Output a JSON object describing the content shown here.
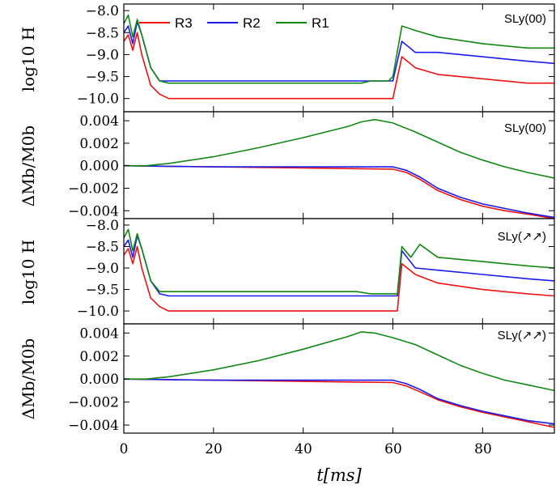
{
  "colors": {
    "R3": "#ee1111",
    "R2": "#1a1aee",
    "R1": "#118811"
  },
  "legend": [
    "R3",
    "R2",
    "R1"
  ],
  "xlabel": "t[ms]",
  "xticks": [
    "0",
    "20",
    "40",
    "60",
    "80"
  ],
  "chart_data": [
    {
      "type": "line",
      "panel": "top",
      "ylabel": "log10 H",
      "tag": "SLy(00)",
      "xlim": [
        0,
        96
      ],
      "ylim": [
        -10.3,
        -7.85
      ],
      "ytick_values": [
        -8.0,
        -8.5,
        -9.0,
        -9.5,
        -10.0
      ],
      "yticks": [
        "−8.0",
        "−8.5",
        "−9.0",
        "−9.5",
        "−10.0"
      ],
      "series": [
        {
          "name": "R3",
          "x": [
            0,
            1,
            2,
            3,
            4,
            6,
            8,
            10,
            15,
            20,
            30,
            40,
            50,
            55,
            58,
            59,
            60,
            62,
            65,
            70,
            80,
            90,
            96
          ],
          "y": [
            -8.7,
            -8.55,
            -8.9,
            -8.5,
            -9.0,
            -9.7,
            -9.9,
            -10.0,
            -10.0,
            -10.0,
            -10.0,
            -10.0,
            -10.0,
            -10.0,
            -10.0,
            -10.0,
            -10.0,
            -9.05,
            -9.3,
            -9.45,
            -9.55,
            -9.65,
            -9.65
          ]
        },
        {
          "name": "R2",
          "x": [
            0,
            1,
            2,
            3,
            4,
            6,
            8,
            10,
            15,
            20,
            30,
            40,
            50,
            55,
            58,
            59,
            60,
            62,
            65,
            70,
            80,
            90,
            96
          ],
          "y": [
            -8.5,
            -8.35,
            -8.75,
            -8.25,
            -8.55,
            -9.3,
            -9.6,
            -9.6,
            -9.6,
            -9.6,
            -9.6,
            -9.6,
            -9.6,
            -9.6,
            -9.6,
            -9.6,
            -9.6,
            -8.7,
            -8.95,
            -8.95,
            -9.05,
            -9.15,
            -9.2
          ]
        },
        {
          "name": "R1",
          "x": [
            0,
            1,
            2,
            3,
            4,
            6,
            8,
            10,
            15,
            20,
            30,
            40,
            48,
            50,
            53,
            55,
            58,
            59,
            60,
            62,
            65,
            70,
            80,
            90,
            96
          ],
          "y": [
            -8.3,
            -8.1,
            -8.6,
            -8.2,
            -8.55,
            -9.3,
            -9.6,
            -9.65,
            -9.65,
            -9.65,
            -9.65,
            -9.65,
            -9.65,
            -9.65,
            -9.65,
            -9.6,
            -9.6,
            -9.6,
            -9.5,
            -8.35,
            -8.45,
            -8.6,
            -8.75,
            -8.85,
            -8.85
          ]
        }
      ]
    },
    {
      "type": "line",
      "panel": "second",
      "ylabel": "ΔMb/M0b",
      "tag": "SLy(00)",
      "xlim": [
        0,
        96
      ],
      "ylim": [
        -0.0047,
        0.0048
      ],
      "ytick_values": [
        0.004,
        0.002,
        0.0,
        -0.002,
        -0.004
      ],
      "yticks": [
        "0.004",
        "0.002",
        "0.000",
        "−0.002",
        "−0.004"
      ],
      "series": [
        {
          "name": "R3",
          "x": [
            0,
            10,
            20,
            30,
            40,
            50,
            60,
            63,
            66,
            70,
            75,
            80,
            85,
            90,
            96
          ],
          "y": [
            0.0,
            -5e-05,
            -0.0001,
            -0.00015,
            -0.0002,
            -0.00025,
            -0.0003,
            -0.0006,
            -0.0012,
            -0.0022,
            -0.003,
            -0.0036,
            -0.004,
            -0.0043,
            -0.0047
          ]
        },
        {
          "name": "R2",
          "x": [
            0,
            10,
            20,
            30,
            40,
            50,
            60,
            63,
            66,
            70,
            75,
            80,
            85,
            90,
            96
          ],
          "y": [
            0.0,
            -5e-05,
            -0.0001,
            -0.0001,
            -0.0001,
            -0.0001,
            -0.0001,
            -0.0004,
            -0.001,
            -0.002,
            -0.0028,
            -0.0034,
            -0.0038,
            -0.0042,
            -0.0046
          ]
        },
        {
          "name": "R1",
          "x": [
            0,
            5,
            10,
            20,
            30,
            40,
            50,
            53,
            56,
            60,
            65,
            70,
            75,
            80,
            85,
            90,
            96
          ],
          "y": [
            0.0,
            0.0,
            0.0002,
            0.0008,
            0.0016,
            0.0025,
            0.0035,
            0.0039,
            0.0041,
            0.0038,
            0.003,
            0.0021,
            0.0012,
            0.0005,
            -0.0001,
            -0.0006,
            -0.0011
          ]
        }
      ]
    },
    {
      "type": "line",
      "panel": "third",
      "ylabel": "log10 H",
      "tag": "SLy(↗↗)",
      "xlim": [
        0,
        96
      ],
      "ylim": [
        -10.3,
        -7.85
      ],
      "ytick_values": [
        -8.0,
        -8.5,
        -9.0,
        -9.5,
        -10.0
      ],
      "yticks": [
        "−8.0",
        "−8.5",
        "−9.0",
        "−9.5",
        "−10.0"
      ],
      "series": [
        {
          "name": "R3",
          "x": [
            0,
            1,
            2,
            3,
            4,
            6,
            8,
            10,
            15,
            20,
            30,
            40,
            50,
            55,
            58,
            60,
            61,
            62,
            65,
            70,
            80,
            90,
            96
          ],
          "y": [
            -8.7,
            -8.55,
            -8.9,
            -8.5,
            -9.0,
            -9.7,
            -9.9,
            -10.0,
            -10.0,
            -10.0,
            -10.0,
            -10.0,
            -10.0,
            -10.0,
            -10.0,
            -10.0,
            -10.0,
            -8.9,
            -9.15,
            -9.35,
            -9.5,
            -9.6,
            -9.65
          ]
        },
        {
          "name": "R2",
          "x": [
            0,
            1,
            2,
            3,
            4,
            6,
            8,
            10,
            15,
            20,
            30,
            40,
            50,
            55,
            58,
            60,
            61,
            62,
            65,
            70,
            80,
            90,
            96
          ],
          "y": [
            -8.5,
            -8.35,
            -8.75,
            -8.25,
            -8.55,
            -9.3,
            -9.6,
            -9.65,
            -9.65,
            -9.65,
            -9.65,
            -9.65,
            -9.65,
            -9.65,
            -9.65,
            -9.65,
            -9.65,
            -8.6,
            -9.0,
            -9.05,
            -9.15,
            -9.25,
            -9.3
          ]
        },
        {
          "name": "R1",
          "x": [
            0,
            1,
            2,
            3,
            4,
            6,
            8,
            10,
            15,
            20,
            30,
            40,
            50,
            52,
            55,
            58,
            60,
            61,
            62,
            64,
            66,
            70,
            80,
            90,
            96
          ],
          "y": [
            -8.3,
            -8.1,
            -8.6,
            -8.2,
            -8.55,
            -9.3,
            -9.55,
            -9.55,
            -9.55,
            -9.55,
            -9.55,
            -9.55,
            -9.55,
            -9.55,
            -9.6,
            -9.6,
            -9.6,
            -9.6,
            -8.5,
            -8.75,
            -8.45,
            -8.75,
            -8.85,
            -8.95,
            -9.0
          ]
        }
      ]
    },
    {
      "type": "line",
      "panel": "bottom",
      "ylabel": "ΔMb/M0b",
      "tag": "SLy(↗↗)",
      "xlim": [
        0,
        96
      ],
      "ylim": [
        -0.0047,
        0.0048
      ],
      "ytick_values": [
        0.004,
        0.002,
        0.0,
        -0.002,
        -0.004
      ],
      "yticks": [
        "0.004",
        "0.002",
        "0.000",
        "−0.002",
        "−0.004"
      ],
      "series": [
        {
          "name": "R3",
          "x": [
            0,
            10,
            20,
            30,
            40,
            50,
            60,
            63,
            66,
            70,
            75,
            80,
            85,
            90,
            96
          ],
          "y": [
            0.0,
            -5e-05,
            -0.0001,
            -0.00015,
            -0.0002,
            -0.00025,
            -0.0003,
            -0.0006,
            -0.0011,
            -0.0018,
            -0.0024,
            -0.0029,
            -0.0033,
            -0.0037,
            -0.0042
          ]
        },
        {
          "name": "R2",
          "x": [
            0,
            10,
            20,
            30,
            40,
            50,
            60,
            63,
            66,
            70,
            75,
            80,
            85,
            90,
            96
          ],
          "y": [
            0.0,
            -5e-05,
            -0.0001,
            -0.0001,
            -0.0001,
            -0.0001,
            -0.0001,
            -0.0004,
            -0.0009,
            -0.0017,
            -0.0023,
            -0.0028,
            -0.0032,
            -0.0036,
            -0.0039
          ]
        },
        {
          "name": "R1",
          "x": [
            0,
            5,
            10,
            20,
            30,
            40,
            50,
            53,
            56,
            60,
            65,
            70,
            75,
            80,
            85,
            90,
            96
          ],
          "y": [
            0.0,
            0.0,
            0.0002,
            0.0008,
            0.0016,
            0.0026,
            0.0037,
            0.0041,
            0.004,
            0.0036,
            0.003,
            0.0021,
            0.0012,
            0.0005,
            -0.0001,
            -0.0005,
            -0.001
          ]
        }
      ]
    }
  ]
}
